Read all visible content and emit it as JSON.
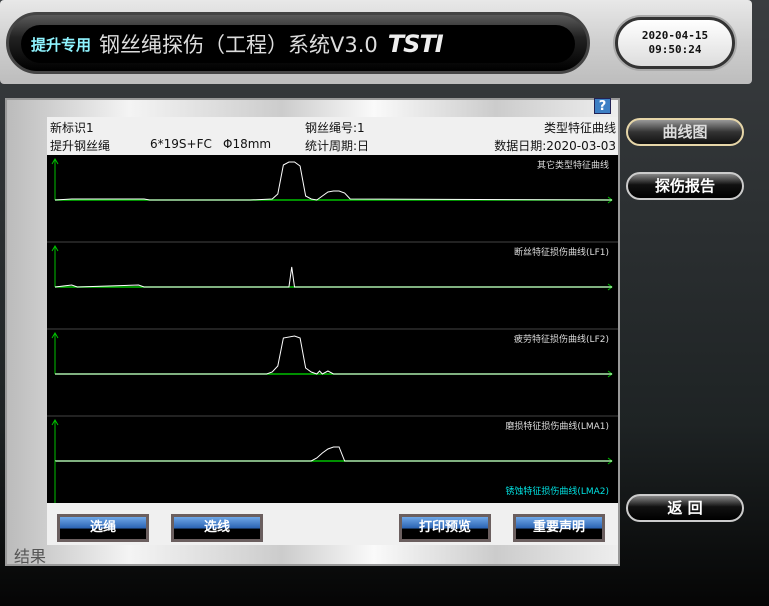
{
  "header": {
    "tag": "提升专用",
    "title": "钢丝绳探伤（工程）系统V3.0",
    "logo": "TSTI",
    "date": "2020-04-15",
    "time": "09:50:24"
  },
  "info": {
    "label": "新标识1",
    "rope_type": "提升钢丝绳",
    "structure": "6*19S+FC",
    "diameter": "Φ18mm",
    "rope_no": "钢丝绳号:1",
    "period": "统计周期:日",
    "curve_type": "类型特征曲线",
    "data_date": "数据日期:2020-03-03"
  },
  "help_label": "?",
  "chart_data": [
    {
      "type": "line",
      "title": "其它类型特征曲线",
      "color": "#ffffff",
      "points": [
        [
          0,
          0
        ],
        [
          3,
          1
        ],
        [
          8,
          1
        ],
        [
          12,
          1
        ],
        [
          16,
          1
        ],
        [
          17,
          0
        ],
        [
          35,
          0
        ],
        [
          39,
          1
        ],
        [
          40,
          6
        ],
        [
          41,
          35
        ],
        [
          42,
          38
        ],
        [
          43,
          38
        ],
        [
          44,
          34
        ],
        [
          45,
          4
        ],
        [
          46,
          1
        ],
        [
          47,
          0
        ],
        [
          48,
          4
        ],
        [
          49,
          8
        ],
        [
          50,
          9
        ],
        [
          51,
          9
        ],
        [
          52,
          7
        ],
        [
          53,
          1
        ],
        [
          100,
          0
        ]
      ]
    },
    {
      "type": "line",
      "title": "断丝特征损伤曲线(LF1)",
      "color": "#ffffff",
      "points": [
        [
          0,
          0
        ],
        [
          3,
          2
        ],
        [
          4,
          0
        ],
        [
          15,
          2
        ],
        [
          16,
          0
        ],
        [
          35,
          0
        ],
        [
          42,
          0
        ],
        [
          42.5,
          20
        ],
        [
          43,
          0
        ],
        [
          100,
          0
        ]
      ]
    },
    {
      "type": "line",
      "title": "疲劳特征损伤曲线(LF2)",
      "color": "#ffffff",
      "points": [
        [
          0,
          0
        ],
        [
          38,
          0
        ],
        [
          39,
          2
        ],
        [
          40,
          8
        ],
        [
          41,
          36
        ],
        [
          43,
          38
        ],
        [
          44,
          36
        ],
        [
          45,
          6
        ],
        [
          46,
          2
        ],
        [
          47,
          0
        ],
        [
          47.5,
          3
        ],
        [
          48,
          0
        ],
        [
          49,
          3
        ],
        [
          50,
          0
        ],
        [
          100,
          0
        ]
      ]
    },
    {
      "type": "line",
      "title": "磨损特征损伤曲线(LMA1)",
      "color": "#ffffff",
      "points": [
        [
          0,
          0
        ],
        [
          46,
          0
        ],
        [
          47,
          3
        ],
        [
          48,
          8
        ],
        [
          49,
          12
        ],
        [
          50,
          14
        ],
        [
          51,
          14
        ],
        [
          52,
          0
        ],
        [
          100,
          0
        ]
      ]
    }
  ],
  "legend_extra": {
    "title": "锈蚀特征损伤曲线(LMA2)",
    "color": "#00e0e0"
  },
  "buttons": [
    "选绳",
    "选线",
    "打印预览",
    "重要声明"
  ],
  "result_label": "结果",
  "side": {
    "curve": "曲线图",
    "report": "探伤报告",
    "back": "返 回"
  },
  "colors": {
    "axis": "#00c000",
    "accent_cyan": "#8ff4ff"
  }
}
